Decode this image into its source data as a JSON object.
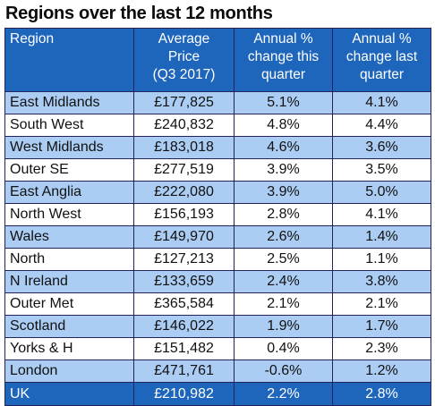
{
  "title": "Regions over the last 12 months",
  "table": {
    "headers": {
      "region": [
        "Region"
      ],
      "price": [
        "Average",
        "Price",
        "(Q3 2017)"
      ],
      "this_quarter": [
        "Annual %",
        "change this",
        "quarter"
      ],
      "last_quarter": [
        "Annual %",
        "change last",
        "quarter"
      ]
    },
    "rows": [
      {
        "region": "East Midlands",
        "price": "£177,825",
        "this_q": "5.1%",
        "last_q": "4.1%"
      },
      {
        "region": "South West",
        "price": "£240,832",
        "this_q": "4.8%",
        "last_q": "4.4%"
      },
      {
        "region": "West Midlands",
        "price": "£183,018",
        "this_q": "4.6%",
        "last_q": "3.6%"
      },
      {
        "region": "Outer SE",
        "price": "£277,519",
        "this_q": "3.9%",
        "last_q": "3.5%"
      },
      {
        "region": "East Anglia",
        "price": "£222,080",
        "this_q": "3.9%",
        "last_q": "5.0%"
      },
      {
        "region": "North West",
        "price": "£156,193",
        "this_q": "2.8%",
        "last_q": "4.1%"
      },
      {
        "region": "Wales",
        "price": "£149,970",
        "this_q": "2.6%",
        "last_q": "1.4%"
      },
      {
        "region": "North",
        "price": "£127,213",
        "this_q": "2.5%",
        "last_q": "1.1%"
      },
      {
        "region": "N Ireland",
        "price": "£133,659",
        "this_q": "2.4%",
        "last_q": "3.8%"
      },
      {
        "region": "Outer Met",
        "price": "£365,584",
        "this_q": "2.1%",
        "last_q": "2.1%"
      },
      {
        "region": "Scotland",
        "price": "£146,022",
        "this_q": "1.9%",
        "last_q": "1.7%"
      },
      {
        "region": "Yorks & H",
        "price": "£151,482",
        "this_q": "0.4%",
        "last_q": "2.3%"
      },
      {
        "region": "London",
        "price": "£471,761",
        "this_q": "-0.6%",
        "last_q": "1.2%"
      }
    ],
    "total": {
      "region": "UK",
      "price": "£210,982",
      "this_q": "2.2%",
      "last_q": "2.8%"
    }
  },
  "colors": {
    "header_blue": "#1e66bc",
    "stripe_light_blue": "#abcdf3",
    "border": "#23235a"
  }
}
